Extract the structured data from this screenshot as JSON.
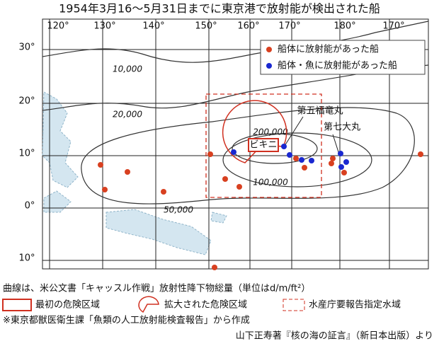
{
  "title": "1954年3月16～5月31日までに東京港で放射能が検出された船",
  "map": {
    "longitude_labels": [
      "120°",
      "130°",
      "140°",
      "150°",
      "160°",
      "170°",
      "180°",
      "170°"
    ],
    "latitude_labels": [
      "30°",
      "20°",
      "10°",
      "0°",
      "10°"
    ],
    "contour_labels": [
      "10,000",
      "20,000",
      "50,000",
      "100,000",
      "200,000"
    ],
    "place_label": "ビキニ",
    "ship_labels": [
      "第五福竜丸",
      "第七大丸"
    ],
    "legend": [
      "船体に放射能があった船",
      "船体・魚に放射能があった船"
    ]
  },
  "notes": {
    "unit": "曲線は、米公文書「キャッスル作戦」放射性降下物総量（単位はd/m/ft²）",
    "zones": [
      "最初の危険区域",
      "拡大された危険区域",
      "水産庁要報告指定水域"
    ],
    "source": "※東京都獣医衛生課「魚類の人工放射能検査報告」から作成",
    "credit": "山下正寿著『核の海の証言』（新日本出版）より"
  }
}
